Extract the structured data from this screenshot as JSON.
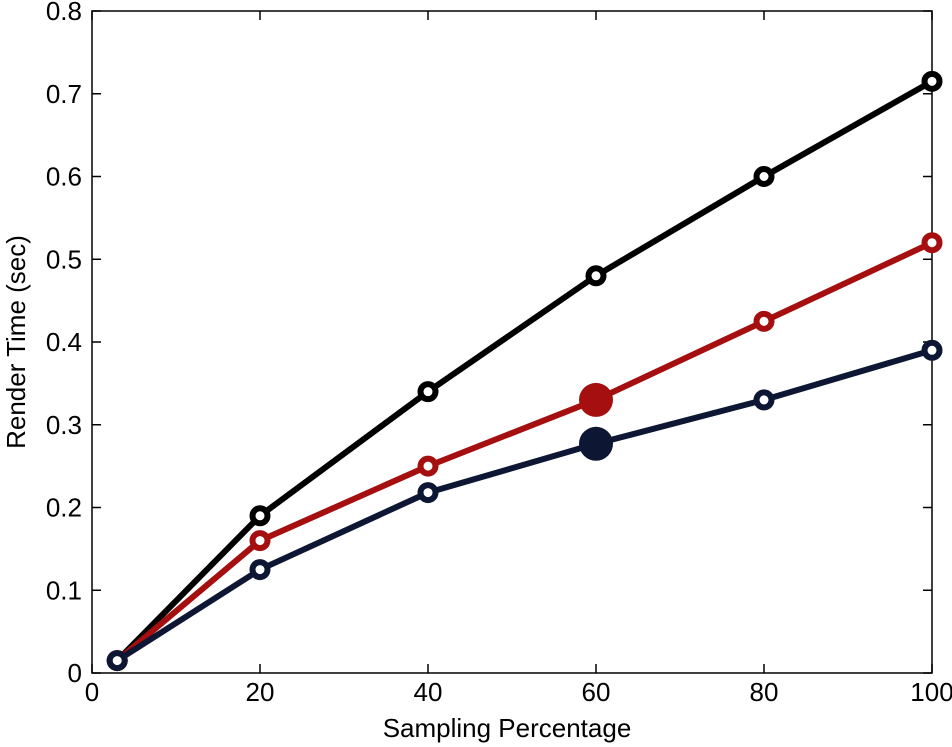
{
  "chart_data": {
    "type": "line",
    "title": "",
    "xlabel": "Sampling Percentage",
    "ylabel": "Render Time (sec)",
    "xlim": [
      0,
      100
    ],
    "ylim": [
      0,
      0.8
    ],
    "xticks": [
      "0",
      "20",
      "40",
      "60",
      "80",
      "100"
    ],
    "yticks": [
      "0",
      "0.1",
      "0.2",
      "0.3",
      "0.4",
      "0.5",
      "0.6",
      "0.7",
      "0.8"
    ],
    "grid": false,
    "legend": "none",
    "series": [
      {
        "color": "#000000",
        "x": [
          3,
          20,
          40,
          60,
          80,
          100
        ],
        "y": [
          0.015,
          0.19,
          0.34,
          0.48,
          0.6,
          0.715
        ]
      },
      {
        "color": "#a50f0f",
        "x": [
          3,
          20,
          40,
          60,
          80,
          100
        ],
        "y": [
          0.015,
          0.16,
          0.25,
          0.33,
          0.425,
          0.52
        ],
        "highlight_index": 3
      },
      {
        "color": "#0d1733",
        "x": [
          3,
          20,
          40,
          60,
          80,
          100
        ],
        "y": [
          0.015,
          0.125,
          0.218,
          0.277,
          0.33,
          0.39
        ],
        "highlight_index": 3
      }
    ]
  }
}
